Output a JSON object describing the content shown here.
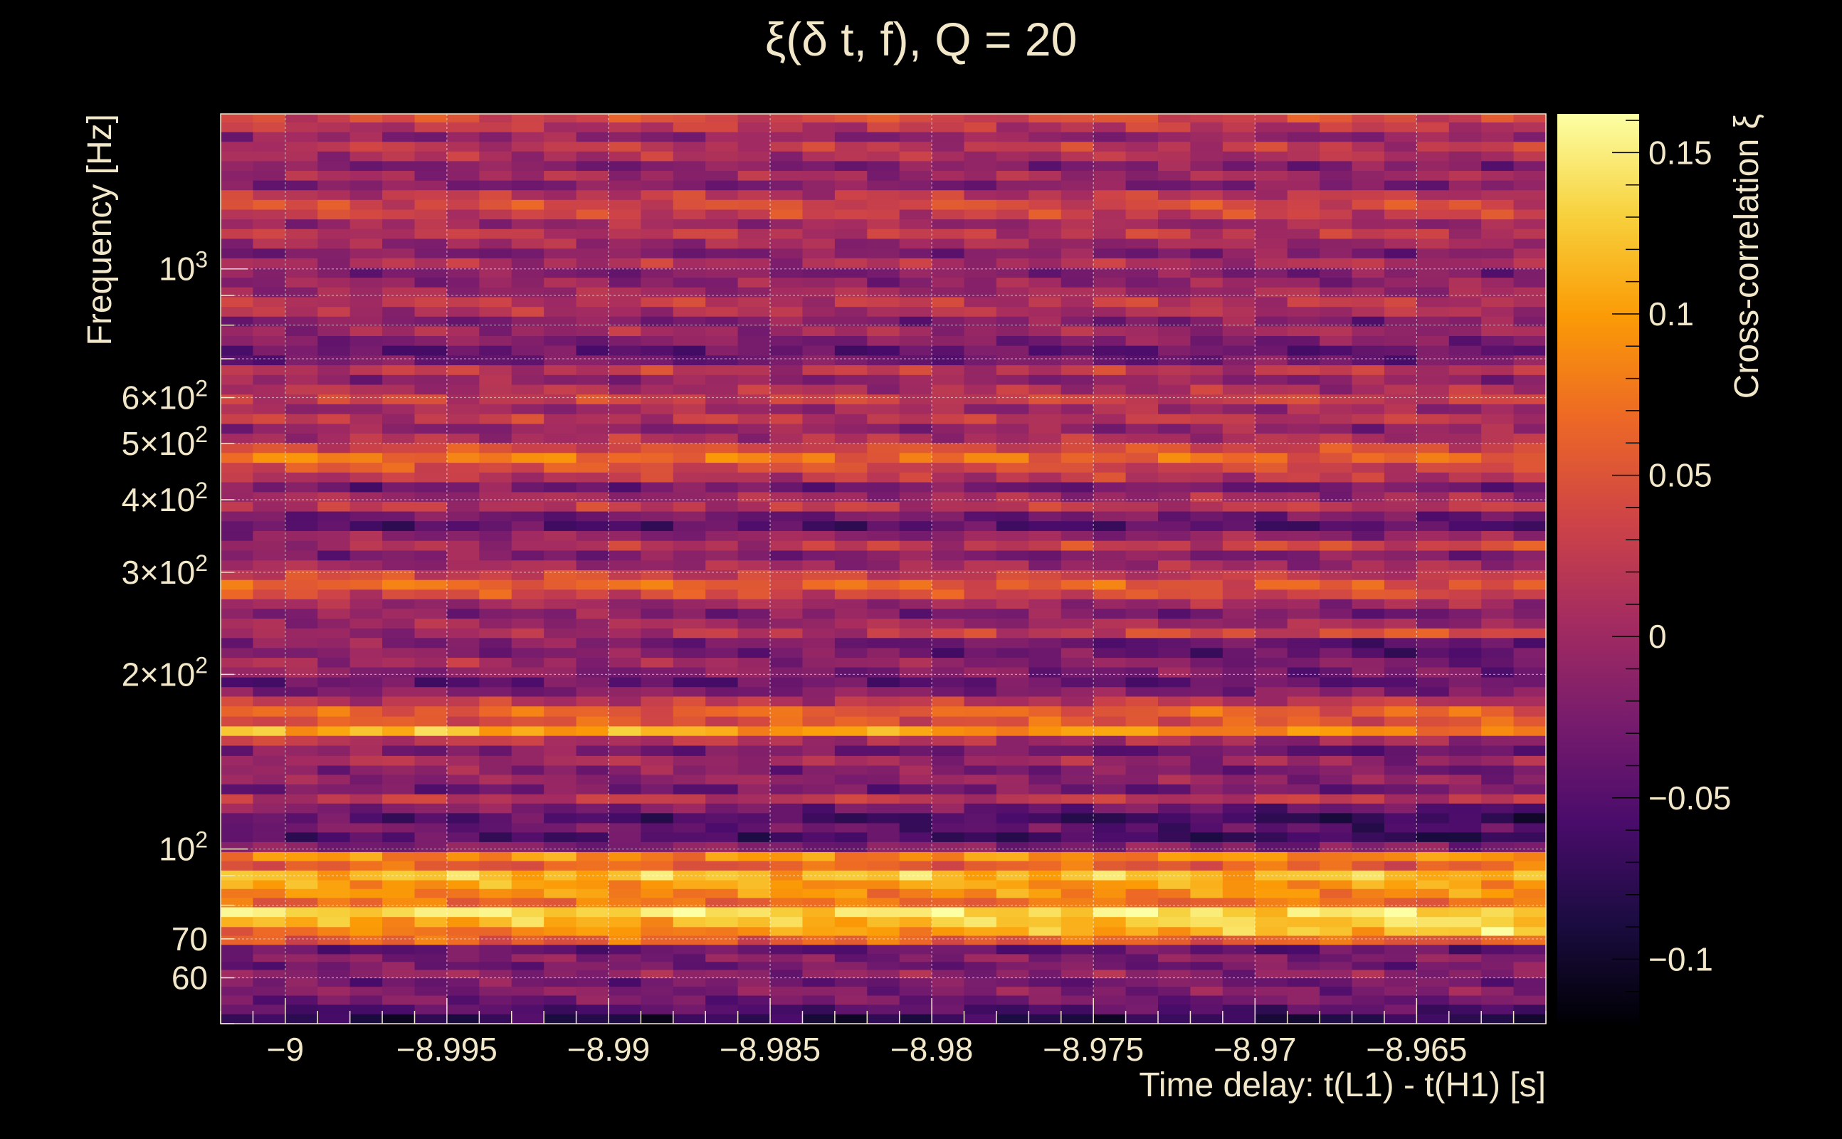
{
  "chart_data": {
    "type": "heatmap",
    "title": "ξ(δ t, f), Q = 20",
    "xlabel": "Time delay: t(L1) - t(H1) [s]",
    "ylabel": "Frequency [Hz]",
    "colorbar_label": "Cross-correlation ξ",
    "x_range": [
      -9.002,
      -8.961
    ],
    "y_range": [
      50,
      1850
    ],
    "y_scale": "log",
    "z_range": [
      -0.12,
      0.162
    ],
    "grid": true,
    "x_ticks": [
      {
        "value": -9.0,
        "label": "−9"
      },
      {
        "value": -8.995,
        "label": "−8.995"
      },
      {
        "value": -8.99,
        "label": "−8.99"
      },
      {
        "value": -8.985,
        "label": "−8.985"
      },
      {
        "value": -8.98,
        "label": "−8.98"
      },
      {
        "value": -8.975,
        "label": "−8.975"
      },
      {
        "value": -8.97,
        "label": "−8.97"
      },
      {
        "value": -8.965,
        "label": "−8.965"
      }
    ],
    "y_ticks": [
      {
        "value": 60,
        "label": "60"
      },
      {
        "value": 70,
        "label": "70"
      },
      {
        "value": 100,
        "label": "10",
        "sup": "2"
      },
      {
        "value": 200,
        "label": "2×10",
        "sup": "2"
      },
      {
        "value": 300,
        "label": "3×10",
        "sup": "2"
      },
      {
        "value": 400,
        "label": "4×10",
        "sup": "2"
      },
      {
        "value": 500,
        "label": "5×10",
        "sup": "2"
      },
      {
        "value": 600,
        "label": "6×10",
        "sup": "2"
      },
      {
        "value": 1000,
        "label": "10",
        "sup": "3"
      }
    ],
    "colorbar_ticks": [
      {
        "value": 0.15,
        "label": "0.15"
      },
      {
        "value": 0.1,
        "label": "0.1"
      },
      {
        "value": 0.05,
        "label": "0.05"
      },
      {
        "value": 0.0,
        "label": "0"
      },
      {
        "value": -0.05,
        "label": "−0.05"
      },
      {
        "value": -0.1,
        "label": "−0.1"
      }
    ],
    "colormap": [
      "#000004",
      "#1b0c41",
      "#4a0c6b",
      "#781c6d",
      "#a52c60",
      "#cf4446",
      "#ed6925",
      "#fb9b06",
      "#f7d13d",
      "#fcffa4"
    ],
    "n_time_bins": 41,
    "rows": [
      {
        "f": 51,
        "v": -0.08,
        "slope": 0.0
      },
      {
        "f": 53,
        "v": -0.05,
        "slope": 0.0
      },
      {
        "f": 55,
        "v": -0.03,
        "slope": 0.0
      },
      {
        "f": 57,
        "v": -0.02,
        "slope": 0.0
      },
      {
        "f": 59,
        "v": -0.03,
        "slope": 0.0
      },
      {
        "f": 61,
        "v": -0.01,
        "slope": 0.0
      },
      {
        "f": 63,
        "v": -0.03,
        "slope": 0.0
      },
      {
        "f": 65,
        "v": -0.02,
        "slope": 0.0
      },
      {
        "f": 67,
        "v": -0.04,
        "slope": 0.0
      },
      {
        "f": 70,
        "v": 0.06,
        "slope": 0.0
      },
      {
        "f": 72,
        "v": 0.1,
        "slope": 0.06
      },
      {
        "f": 75,
        "v": 0.12,
        "slope": 0.03
      },
      {
        "f": 78,
        "v": 0.14,
        "slope": 0.0
      },
      {
        "f": 81,
        "v": 0.07,
        "slope": 0.0
      },
      {
        "f": 84,
        "v": 0.09,
        "slope": 0.0
      },
      {
        "f": 87,
        "v": 0.1,
        "slope": 0.0
      },
      {
        "f": 90,
        "v": 0.12,
        "slope": 0.0
      },
      {
        "f": 94,
        "v": 0.06,
        "slope": 0.0
      },
      {
        "f": 97,
        "v": 0.09,
        "slope": 0.0
      },
      {
        "f": 101,
        "v": -0.02,
        "slope": 0.0
      },
      {
        "f": 105,
        "v": -0.06,
        "slope": -0.03
      },
      {
        "f": 109,
        "v": -0.04,
        "slope": -0.03
      },
      {
        "f": 113,
        "v": -0.06,
        "slope": -0.03
      },
      {
        "f": 118,
        "v": -0.03,
        "slope": -0.03
      },
      {
        "f": 122,
        "v": 0.02,
        "slope": 0.0
      },
      {
        "f": 127,
        "v": -0.03,
        "slope": 0.0
      },
      {
        "f": 132,
        "v": -0.01,
        "slope": 0.0
      },
      {
        "f": 137,
        "v": -0.02,
        "slope": -0.02
      },
      {
        "f": 142,
        "v": 0.0,
        "slope": -0.02
      },
      {
        "f": 148,
        "v": -0.03,
        "slope": -0.03
      },
      {
        "f": 154,
        "v": 0.01,
        "slope": -0.03
      },
      {
        "f": 160,
        "v": 0.1,
        "slope": -0.04
      },
      {
        "f": 166,
        "v": 0.05,
        "slope": 0.0
      },
      {
        "f": 173,
        "v": 0.06,
        "slope": 0.0
      },
      {
        "f": 180,
        "v": 0.02,
        "slope": 0.0
      },
      {
        "f": 187,
        "v": -0.02,
        "slope": 0.0
      },
      {
        "f": 194,
        "v": -0.04,
        "slope": 0.0
      },
      {
        "f": 202,
        "v": -0.02,
        "slope": -0.02
      },
      {
        "f": 210,
        "v": -0.01,
        "slope": -0.04
      },
      {
        "f": 218,
        "v": -0.03,
        "slope": -0.04
      },
      {
        "f": 227,
        "v": -0.03,
        "slope": -0.04
      },
      {
        "f": 236,
        "v": 0.02,
        "slope": 0.06
      },
      {
        "f": 245,
        "v": 0.0,
        "slope": 0.0
      },
      {
        "f": 255,
        "v": -0.02,
        "slope": -0.02
      },
      {
        "f": 265,
        "v": 0.0,
        "slope": 0.0
      },
      {
        "f": 275,
        "v": 0.04,
        "slope": 0.0
      },
      {
        "f": 286,
        "v": 0.06,
        "slope": -0.02
      },
      {
        "f": 297,
        "v": 0.03,
        "slope": -0.02
      },
      {
        "f": 309,
        "v": 0.0,
        "slope": 0.0
      },
      {
        "f": 321,
        "v": -0.02,
        "slope": 0.0
      },
      {
        "f": 334,
        "v": 0.02,
        "slope": 0.04
      },
      {
        "f": 347,
        "v": -0.01,
        "slope": 0.0
      },
      {
        "f": 361,
        "v": -0.05,
        "slope": 0.0
      },
      {
        "f": 375,
        "v": -0.03,
        "slope": 0.0
      },
      {
        "f": 390,
        "v": 0.02,
        "slope": 0.0
      },
      {
        "f": 405,
        "v": 0.0,
        "slope": 0.0
      },
      {
        "f": 421,
        "v": -0.03,
        "slope": 0.0
      },
      {
        "f": 438,
        "v": 0.02,
        "slope": 0.0
      },
      {
        "f": 455,
        "v": 0.04,
        "slope": -0.02
      },
      {
        "f": 473,
        "v": 0.07,
        "slope": -0.02
      },
      {
        "f": 492,
        "v": 0.04,
        "slope": 0.0
      },
      {
        "f": 511,
        "v": 0.01,
        "slope": 0.0
      },
      {
        "f": 531,
        "v": -0.01,
        "slope": 0.0
      },
      {
        "f": 552,
        "v": 0.02,
        "slope": 0.0
      },
      {
        "f": 574,
        "v": 0.0,
        "slope": 0.0
      },
      {
        "f": 597,
        "v": 0.03,
        "slope": 0.0
      },
      {
        "f": 620,
        "v": 0.01,
        "slope": 0.0
      },
      {
        "f": 645,
        "v": -0.01,
        "slope": 0.0
      },
      {
        "f": 670,
        "v": 0.02,
        "slope": 0.0
      },
      {
        "f": 697,
        "v": -0.03,
        "slope": 0.0
      },
      {
        "f": 724,
        "v": -0.04,
        "slope": 0.0
      },
      {
        "f": 753,
        "v": -0.02,
        "slope": 0.0
      },
      {
        "f": 782,
        "v": 0.0,
        "slope": 0.0
      },
      {
        "f": 813,
        "v": -0.02,
        "slope": 0.0
      },
      {
        "f": 845,
        "v": 0.01,
        "slope": 0.0
      },
      {
        "f": 878,
        "v": 0.02,
        "slope": 0.0
      },
      {
        "f": 913,
        "v": 0.0,
        "slope": 0.0
      },
      {
        "f": 949,
        "v": -0.01,
        "slope": 0.0
      },
      {
        "f": 986,
        "v": -0.02,
        "slope": 0.0
      },
      {
        "f": 1025,
        "v": 0.01,
        "slope": 0.0
      },
      {
        "f": 1065,
        "v": -0.02,
        "slope": 0.0
      },
      {
        "f": 1107,
        "v": 0.0,
        "slope": 0.0
      },
      {
        "f": 1151,
        "v": 0.02,
        "slope": 0.0
      },
      {
        "f": 1196,
        "v": 0.0,
        "slope": 0.0
      },
      {
        "f": 1243,
        "v": 0.03,
        "slope": 0.0
      },
      {
        "f": 1292,
        "v": 0.04,
        "slope": 0.0
      },
      {
        "f": 1343,
        "v": 0.02,
        "slope": 0.0
      },
      {
        "f": 1395,
        "v": -0.02,
        "slope": 0.0
      },
      {
        "f": 1450,
        "v": 0.0,
        "slope": 0.0
      },
      {
        "f": 1507,
        "v": -0.02,
        "slope": 0.0
      },
      {
        "f": 1566,
        "v": 0.01,
        "slope": 0.0
      },
      {
        "f": 1627,
        "v": 0.02,
        "slope": 0.0
      },
      {
        "f": 1691,
        "v": -0.01,
        "slope": 0.0
      },
      {
        "f": 1757,
        "v": 0.02,
        "slope": 0.0
      },
      {
        "f": 1826,
        "v": 0.04,
        "slope": 0.0
      }
    ]
  }
}
